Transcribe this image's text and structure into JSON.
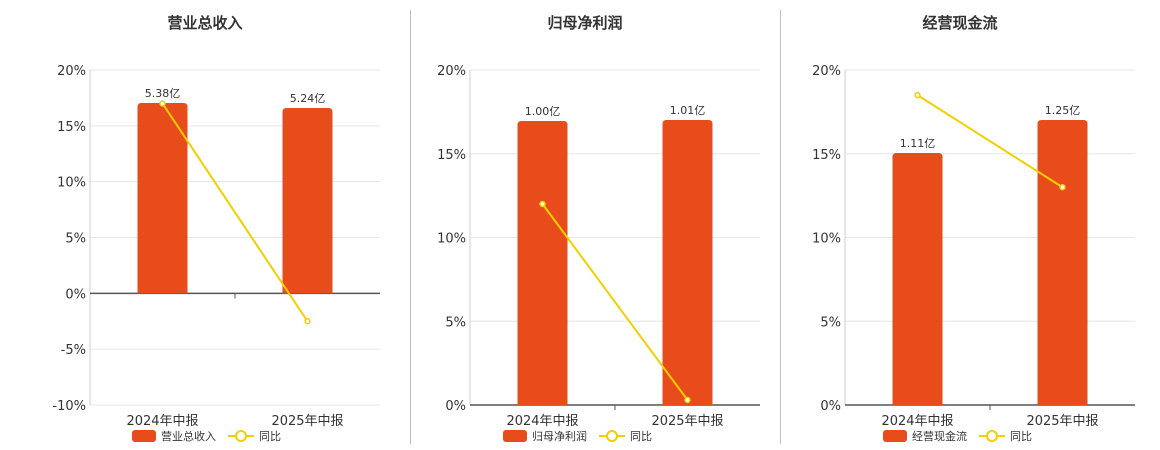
{
  "colors": {
    "bar": "#e84c1a",
    "line": "#f2cf00"
  },
  "chart_data": [
    {
      "type": "bar",
      "title": "营业总收入",
      "categories": [
        "2024年中报",
        "2025年中报"
      ],
      "bar_labels": [
        "5.38亿",
        "5.24亿"
      ],
      "yoy_percent": [
        17.0,
        -2.5
      ],
      "ylim": [
        -10,
        20
      ],
      "yticks": [
        "20%",
        "15%",
        "10%",
        "5%",
        "0%",
        "-5%",
        "-10%"
      ],
      "ytick_values": [
        20,
        15,
        10,
        5,
        0,
        -5,
        -10
      ],
      "legend": [
        "营业总收入",
        "同比"
      ]
    },
    {
      "type": "bar",
      "title": "归母净利润",
      "categories": [
        "2024年中报",
        "2025年中报"
      ],
      "bar_labels": [
        "1.00亿",
        "1.01亿"
      ],
      "yoy_percent": [
        12.0,
        0.3
      ],
      "ylim": [
        0,
        20
      ],
      "yticks": [
        "20%",
        "15%",
        "10%",
        "5%",
        "0%"
      ],
      "ytick_values": [
        20,
        15,
        10,
        5,
        0
      ],
      "legend": [
        "归母净利润",
        "同比"
      ]
    },
    {
      "type": "bar",
      "title": "经营现金流",
      "categories": [
        "2024年中报",
        "2025年中报"
      ],
      "bar_labels": [
        "1.11亿",
        "1.25亿"
      ],
      "yoy_percent": [
        18.5,
        13.0
      ],
      "ylim": [
        0,
        20
      ],
      "yticks": [
        "20%",
        "15%",
        "10%",
        "5%",
        "0%"
      ],
      "ytick_values": [
        20,
        15,
        10,
        5,
        0
      ],
      "legend": [
        "经营现金流",
        "同比"
      ]
    }
  ]
}
